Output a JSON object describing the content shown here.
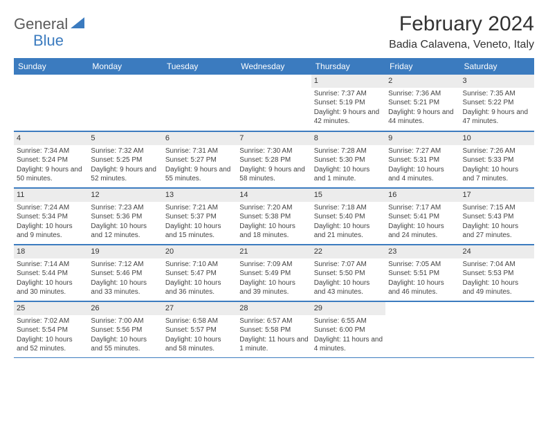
{
  "brand": {
    "word1": "General",
    "word2": "Blue"
  },
  "title": "February 2024",
  "subtitle": "Badia Calavena, Veneto, Italy",
  "colors": {
    "header_bg": "#3b7bbf",
    "header_text": "#ffffff",
    "daynum_bg": "#ececec",
    "row_border": "#3b7bbf",
    "body_text": "#424242",
    "title_text": "#333333"
  },
  "day_headers": [
    "Sunday",
    "Monday",
    "Tuesday",
    "Wednesday",
    "Thursday",
    "Friday",
    "Saturday"
  ],
  "weeks": [
    [
      null,
      null,
      null,
      null,
      {
        "n": "1",
        "sunrise": "Sunrise: 7:37 AM",
        "sunset": "Sunset: 5:19 PM",
        "daylight": "Daylight: 9 hours and 42 minutes."
      },
      {
        "n": "2",
        "sunrise": "Sunrise: 7:36 AM",
        "sunset": "Sunset: 5:21 PM",
        "daylight": "Daylight: 9 hours and 44 minutes."
      },
      {
        "n": "3",
        "sunrise": "Sunrise: 7:35 AM",
        "sunset": "Sunset: 5:22 PM",
        "daylight": "Daylight: 9 hours and 47 minutes."
      }
    ],
    [
      {
        "n": "4",
        "sunrise": "Sunrise: 7:34 AM",
        "sunset": "Sunset: 5:24 PM",
        "daylight": "Daylight: 9 hours and 50 minutes."
      },
      {
        "n": "5",
        "sunrise": "Sunrise: 7:32 AM",
        "sunset": "Sunset: 5:25 PM",
        "daylight": "Daylight: 9 hours and 52 minutes."
      },
      {
        "n": "6",
        "sunrise": "Sunrise: 7:31 AM",
        "sunset": "Sunset: 5:27 PM",
        "daylight": "Daylight: 9 hours and 55 minutes."
      },
      {
        "n": "7",
        "sunrise": "Sunrise: 7:30 AM",
        "sunset": "Sunset: 5:28 PM",
        "daylight": "Daylight: 9 hours and 58 minutes."
      },
      {
        "n": "8",
        "sunrise": "Sunrise: 7:28 AM",
        "sunset": "Sunset: 5:30 PM",
        "daylight": "Daylight: 10 hours and 1 minute."
      },
      {
        "n": "9",
        "sunrise": "Sunrise: 7:27 AM",
        "sunset": "Sunset: 5:31 PM",
        "daylight": "Daylight: 10 hours and 4 minutes."
      },
      {
        "n": "10",
        "sunrise": "Sunrise: 7:26 AM",
        "sunset": "Sunset: 5:33 PM",
        "daylight": "Daylight: 10 hours and 7 minutes."
      }
    ],
    [
      {
        "n": "11",
        "sunrise": "Sunrise: 7:24 AM",
        "sunset": "Sunset: 5:34 PM",
        "daylight": "Daylight: 10 hours and 9 minutes."
      },
      {
        "n": "12",
        "sunrise": "Sunrise: 7:23 AM",
        "sunset": "Sunset: 5:36 PM",
        "daylight": "Daylight: 10 hours and 12 minutes."
      },
      {
        "n": "13",
        "sunrise": "Sunrise: 7:21 AM",
        "sunset": "Sunset: 5:37 PM",
        "daylight": "Daylight: 10 hours and 15 minutes."
      },
      {
        "n": "14",
        "sunrise": "Sunrise: 7:20 AM",
        "sunset": "Sunset: 5:38 PM",
        "daylight": "Daylight: 10 hours and 18 minutes."
      },
      {
        "n": "15",
        "sunrise": "Sunrise: 7:18 AM",
        "sunset": "Sunset: 5:40 PM",
        "daylight": "Daylight: 10 hours and 21 minutes."
      },
      {
        "n": "16",
        "sunrise": "Sunrise: 7:17 AM",
        "sunset": "Sunset: 5:41 PM",
        "daylight": "Daylight: 10 hours and 24 minutes."
      },
      {
        "n": "17",
        "sunrise": "Sunrise: 7:15 AM",
        "sunset": "Sunset: 5:43 PM",
        "daylight": "Daylight: 10 hours and 27 minutes."
      }
    ],
    [
      {
        "n": "18",
        "sunrise": "Sunrise: 7:14 AM",
        "sunset": "Sunset: 5:44 PM",
        "daylight": "Daylight: 10 hours and 30 minutes."
      },
      {
        "n": "19",
        "sunrise": "Sunrise: 7:12 AM",
        "sunset": "Sunset: 5:46 PM",
        "daylight": "Daylight: 10 hours and 33 minutes."
      },
      {
        "n": "20",
        "sunrise": "Sunrise: 7:10 AM",
        "sunset": "Sunset: 5:47 PM",
        "daylight": "Daylight: 10 hours and 36 minutes."
      },
      {
        "n": "21",
        "sunrise": "Sunrise: 7:09 AM",
        "sunset": "Sunset: 5:49 PM",
        "daylight": "Daylight: 10 hours and 39 minutes."
      },
      {
        "n": "22",
        "sunrise": "Sunrise: 7:07 AM",
        "sunset": "Sunset: 5:50 PM",
        "daylight": "Daylight: 10 hours and 43 minutes."
      },
      {
        "n": "23",
        "sunrise": "Sunrise: 7:05 AM",
        "sunset": "Sunset: 5:51 PM",
        "daylight": "Daylight: 10 hours and 46 minutes."
      },
      {
        "n": "24",
        "sunrise": "Sunrise: 7:04 AM",
        "sunset": "Sunset: 5:53 PM",
        "daylight": "Daylight: 10 hours and 49 minutes."
      }
    ],
    [
      {
        "n": "25",
        "sunrise": "Sunrise: 7:02 AM",
        "sunset": "Sunset: 5:54 PM",
        "daylight": "Daylight: 10 hours and 52 minutes."
      },
      {
        "n": "26",
        "sunrise": "Sunrise: 7:00 AM",
        "sunset": "Sunset: 5:56 PM",
        "daylight": "Daylight: 10 hours and 55 minutes."
      },
      {
        "n": "27",
        "sunrise": "Sunrise: 6:58 AM",
        "sunset": "Sunset: 5:57 PM",
        "daylight": "Daylight: 10 hours and 58 minutes."
      },
      {
        "n": "28",
        "sunrise": "Sunrise: 6:57 AM",
        "sunset": "Sunset: 5:58 PM",
        "daylight": "Daylight: 11 hours and 1 minute."
      },
      {
        "n": "29",
        "sunrise": "Sunrise: 6:55 AM",
        "sunset": "Sunset: 6:00 PM",
        "daylight": "Daylight: 11 hours and 4 minutes."
      },
      null,
      null
    ]
  ]
}
